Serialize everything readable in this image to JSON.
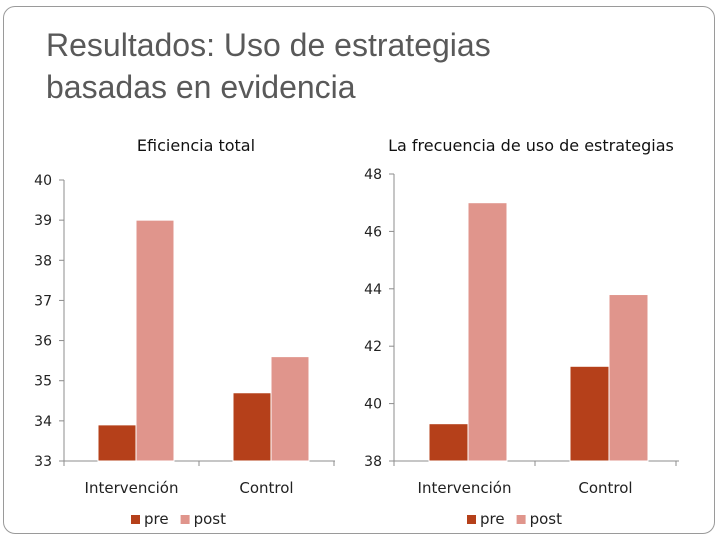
{
  "slide": {
    "title_line1": "Resultados: Uso de estrategias",
    "title_line2": "basadas en evidencia"
  },
  "colors": {
    "pre": "#B5401A",
    "post": "#E0958C"
  },
  "chart_data": [
    {
      "type": "bar",
      "title": "Eficiencia total",
      "categories": [
        "Intervención",
        "Control"
      ],
      "series": [
        {
          "name": "pre",
          "values": [
            33.9,
            34.7
          ]
        },
        {
          "name": "post",
          "values": [
            39.0,
            35.6
          ]
        }
      ],
      "ylim": [
        33,
        40
      ],
      "yticks": [
        33,
        34,
        35,
        36,
        37,
        38,
        39,
        40
      ],
      "xlabel": "",
      "ylabel": "",
      "legend": "bottom"
    },
    {
      "type": "bar",
      "title": "La frecuencia de uso de estrategias",
      "categories": [
        "Intervención",
        "Control"
      ],
      "series": [
        {
          "name": "pre",
          "values": [
            39.3,
            41.3
          ]
        },
        {
          "name": "post",
          "values": [
            47.0,
            43.8
          ]
        }
      ],
      "ylim": [
        38,
        48
      ],
      "yticks": [
        38,
        40,
        42,
        44,
        46,
        48
      ],
      "xlabel": "",
      "ylabel": "",
      "legend": "bottom"
    }
  ]
}
